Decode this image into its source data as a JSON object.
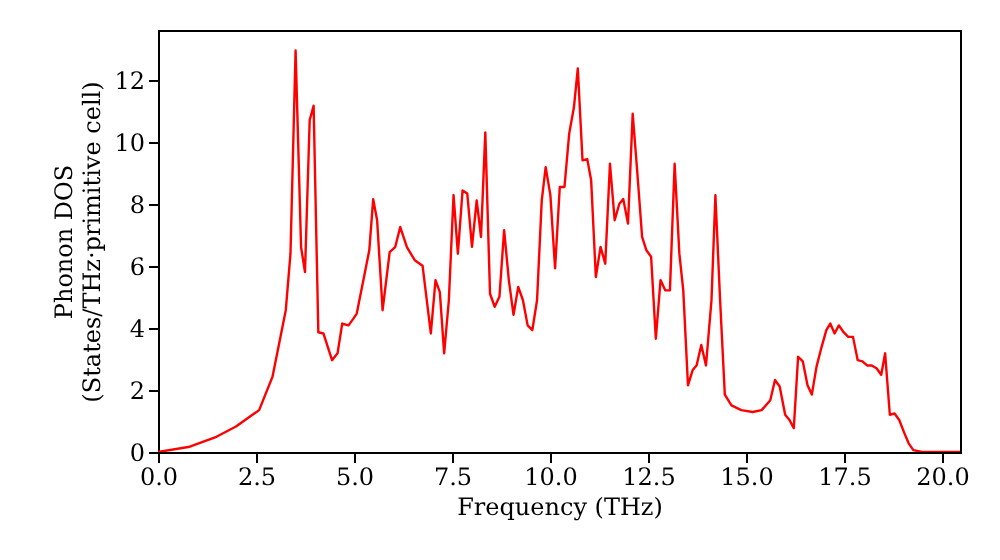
{
  "chart_data": {
    "type": "line",
    "xlabel": "Frequency (THz)",
    "ylabel": "Phonon DOS\n(States/THz·primitive cell)",
    "xlim": [
      0,
      20.46
    ],
    "ylim": [
      0,
      13.6
    ],
    "xticks": [
      {
        "value": 0,
        "label": "0.0"
      },
      {
        "value": 2.5,
        "label": "2.5"
      },
      {
        "value": 5,
        "label": "5.0"
      },
      {
        "value": 7.5,
        "label": "7.5"
      },
      {
        "value": 10,
        "label": "10.0"
      },
      {
        "value": 12.5,
        "label": "12.5"
      },
      {
        "value": 15,
        "label": "15.0"
      },
      {
        "value": 17.5,
        "label": "17.5"
      },
      {
        "value": 20,
        "label": "20.0"
      }
    ],
    "yticks": [
      0,
      2,
      4,
      6,
      8,
      10,
      12
    ],
    "grid": false,
    "marker": "none",
    "line_style": "solid",
    "series": [
      {
        "color": "#ff0000",
        "x": [
          0,
          0.81,
          1.49,
          1.99,
          2.58,
          2.92,
          3.26,
          3.38,
          3.51,
          3.65,
          3.75,
          3.87,
          3.97,
          4.09,
          4.22,
          4.44,
          4.58,
          4.7,
          4.86,
          4.98,
          5.07,
          5.24,
          5.39,
          5.49,
          5.59,
          5.73,
          5.91,
          6.05,
          6.18,
          6.35,
          6.55,
          6.75,
          6.96,
          7.08,
          7.19,
          7.3,
          7.42,
          7.54,
          7.65,
          7.77,
          7.89,
          8.01,
          8.13,
          8.24,
          8.35,
          8.47,
          8.59,
          8.71,
          8.83,
          8.95,
          9.07,
          9.19,
          9.31,
          9.43,
          9.55,
          9.67,
          9.79,
          9.89,
          10.01,
          10.13,
          10.25,
          10.37,
          10.49,
          10.61,
          10.71,
          10.83,
          10.95,
          11.05,
          11.17,
          11.29,
          11.41,
          11.53,
          11.65,
          11.77,
          11.87,
          11.99,
          12.11,
          12.23,
          12.35,
          12.46,
          12.58,
          12.7,
          12.82,
          12.94,
          13.06,
          13.18,
          13.3,
          13.4,
          13.52,
          13.64,
          13.74,
          13.86,
          13.98,
          14.12,
          14.22,
          14.34,
          14.46,
          14.63,
          14.88,
          15.17,
          15.4,
          15.62,
          15.74,
          15.86,
          16.0,
          16.11,
          16.22,
          16.33,
          16.45,
          16.57,
          16.68,
          16.8,
          16.93,
          17.05,
          17.15,
          17.26,
          17.37,
          17.49,
          17.61,
          17.73,
          17.85,
          17.97,
          18.09,
          18.21,
          18.33,
          18.45,
          18.55,
          18.67,
          18.79,
          18.91,
          19.03,
          19.15,
          19.27,
          19.49,
          20.46
        ],
        "values": [
          0,
          0.17,
          0.49,
          0.82,
          1.35,
          2.42,
          4.57,
          6.4,
          12.94,
          6.6,
          5.8,
          10.7,
          11.16,
          3.86,
          3.82,
          2.96,
          3.18,
          4.14,
          4.08,
          4.29,
          4.46,
          5.54,
          6.5,
          8.15,
          7.47,
          4.57,
          6.44,
          6.6,
          7.25,
          6.6,
          6.18,
          6.0,
          3.82,
          5.54,
          5.15,
          3.18,
          4.89,
          8.28,
          6.39,
          8.43,
          8.33,
          6.61,
          8.11,
          6.93,
          10.3,
          5.1,
          4.68,
          5.0,
          7.15,
          5.54,
          4.42,
          5.32,
          4.89,
          4.08,
          3.93,
          4.89,
          8.11,
          9.18,
          8.28,
          5.92,
          8.54,
          8.54,
          10.26,
          11.1,
          12.36,
          9.4,
          9.44,
          8.76,
          5.64,
          6.61,
          6.07,
          9.29,
          7.47,
          8.0,
          8.15,
          7.36,
          10.9,
          8.97,
          6.93,
          6.5,
          6.29,
          3.65,
          5.54,
          5.21,
          5.21,
          9.29,
          6.4,
          5.21,
          2.15,
          2.64,
          2.79,
          3.45,
          2.79,
          4.89,
          8.28,
          4.89,
          1.85,
          1.5,
          1.35,
          1.29,
          1.35,
          1.67,
          2.32,
          2.11,
          1.2,
          1.03,
          0.77,
          3.07,
          2.92,
          2.15,
          1.85,
          2.75,
          3.39,
          3.93,
          4.14,
          3.82,
          4.08,
          3.86,
          3.71,
          3.71,
          2.96,
          2.92,
          2.79,
          2.79,
          2.7,
          2.49,
          3.18,
          1.2,
          1.24,
          1.03,
          0.64,
          0.28,
          0.06,
          0,
          0
        ]
      }
    ]
  }
}
